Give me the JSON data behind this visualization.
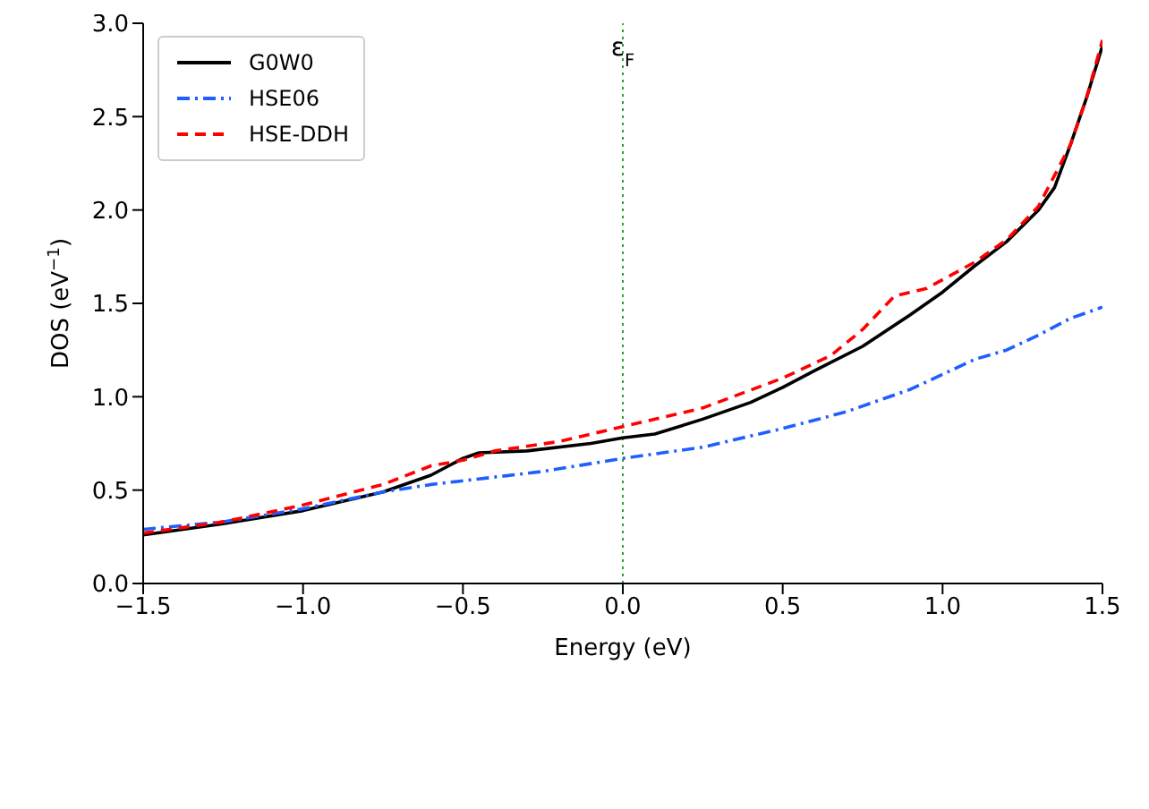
{
  "chart_data": {
    "type": "line",
    "xlabel": "Energy (eV)",
    "ylabel": "DOS (eV$^{−1}$)",
    "xlim": [
      -1.5,
      1.5
    ],
    "ylim": [
      0,
      3
    ],
    "xticks": [
      {
        "value": -1.5,
        "label": "−1.5"
      },
      {
        "value": -1,
        "label": "−1.0"
      },
      {
        "value": -0.5,
        "label": "−0.5"
      },
      {
        "value": 0,
        "label": "0.0"
      },
      {
        "value": 0.5,
        "label": "0.5"
      },
      {
        "value": 1,
        "label": "1.0"
      },
      {
        "value": 1.5,
        "label": "1.5"
      }
    ],
    "yticks": [
      {
        "value": 0,
        "label": "0.0"
      },
      {
        "value": 0.5,
        "label": "0.5"
      },
      {
        "value": 1,
        "label": "1.0"
      },
      {
        "value": 1.5,
        "label": "1.5"
      },
      {
        "value": 2,
        "label": "2.0"
      },
      {
        "value": 2.5,
        "label": "2.5"
      },
      {
        "value": 3,
        "label": "3.0"
      }
    ],
    "grid": false,
    "legend": "top left",
    "marker": "none",
    "ref_lines": [
      {
        "axis": "x",
        "value": 0,
        "label": "ε$_{F}$",
        "color": "#2ca02c",
        "line_style": "dotted"
      }
    ],
    "series": [
      {
        "name": "G0W0",
        "color": "#000000",
        "line_style": "solid",
        "x": [
          -1.5,
          -1.25,
          -1,
          -0.75,
          -0.6,
          -0.5,
          -0.45,
          -0.3,
          -0.1,
          0,
          0.1,
          0.25,
          0.4,
          0.5,
          0.6,
          0.75,
          0.9,
          1,
          1.1,
          1.2,
          1.3,
          1.35,
          1.4,
          1.45,
          1.5
        ],
        "values": [
          0.26,
          0.32,
          0.39,
          0.49,
          0.58,
          0.67,
          0.7,
          0.71,
          0.75,
          0.78,
          0.8,
          0.88,
          0.97,
          1.05,
          1.14,
          1.27,
          1.44,
          1.56,
          1.7,
          1.83,
          2,
          2.12,
          2.35,
          2.6,
          2.88
        ]
      },
      {
        "name": "HSE06",
        "color": "#1f5fff",
        "line_style": "dashdot",
        "x": [
          -1.5,
          -1.25,
          -1,
          -0.75,
          -0.6,
          -0.25,
          0,
          0.25,
          0.5,
          0.7,
          0.9,
          1.1,
          1.2,
          1.3,
          1.4,
          1.5
        ],
        "values": [
          0.29,
          0.33,
          0.4,
          0.49,
          0.53,
          0.6,
          0.67,
          0.73,
          0.83,
          0.92,
          1.04,
          1.2,
          1.25,
          1.33,
          1.42,
          1.48
        ]
      },
      {
        "name": "HSE-DDH",
        "color": "#ff0000",
        "line_style": "dashed",
        "x": [
          -1.5,
          -1.25,
          -1,
          -0.75,
          -0.6,
          -0.5,
          -0.4,
          -0.2,
          0,
          0.25,
          0.5,
          0.65,
          0.75,
          0.85,
          0.95,
          1.1,
          1.2,
          1.3,
          1.4,
          1.45,
          1.5
        ],
        "values": [
          0.27,
          0.33,
          0.42,
          0.53,
          0.63,
          0.66,
          0.71,
          0.76,
          0.84,
          0.94,
          1.1,
          1.22,
          1.36,
          1.54,
          1.58,
          1.72,
          1.84,
          2.02,
          2.35,
          2.6,
          2.91
        ]
      }
    ]
  }
}
